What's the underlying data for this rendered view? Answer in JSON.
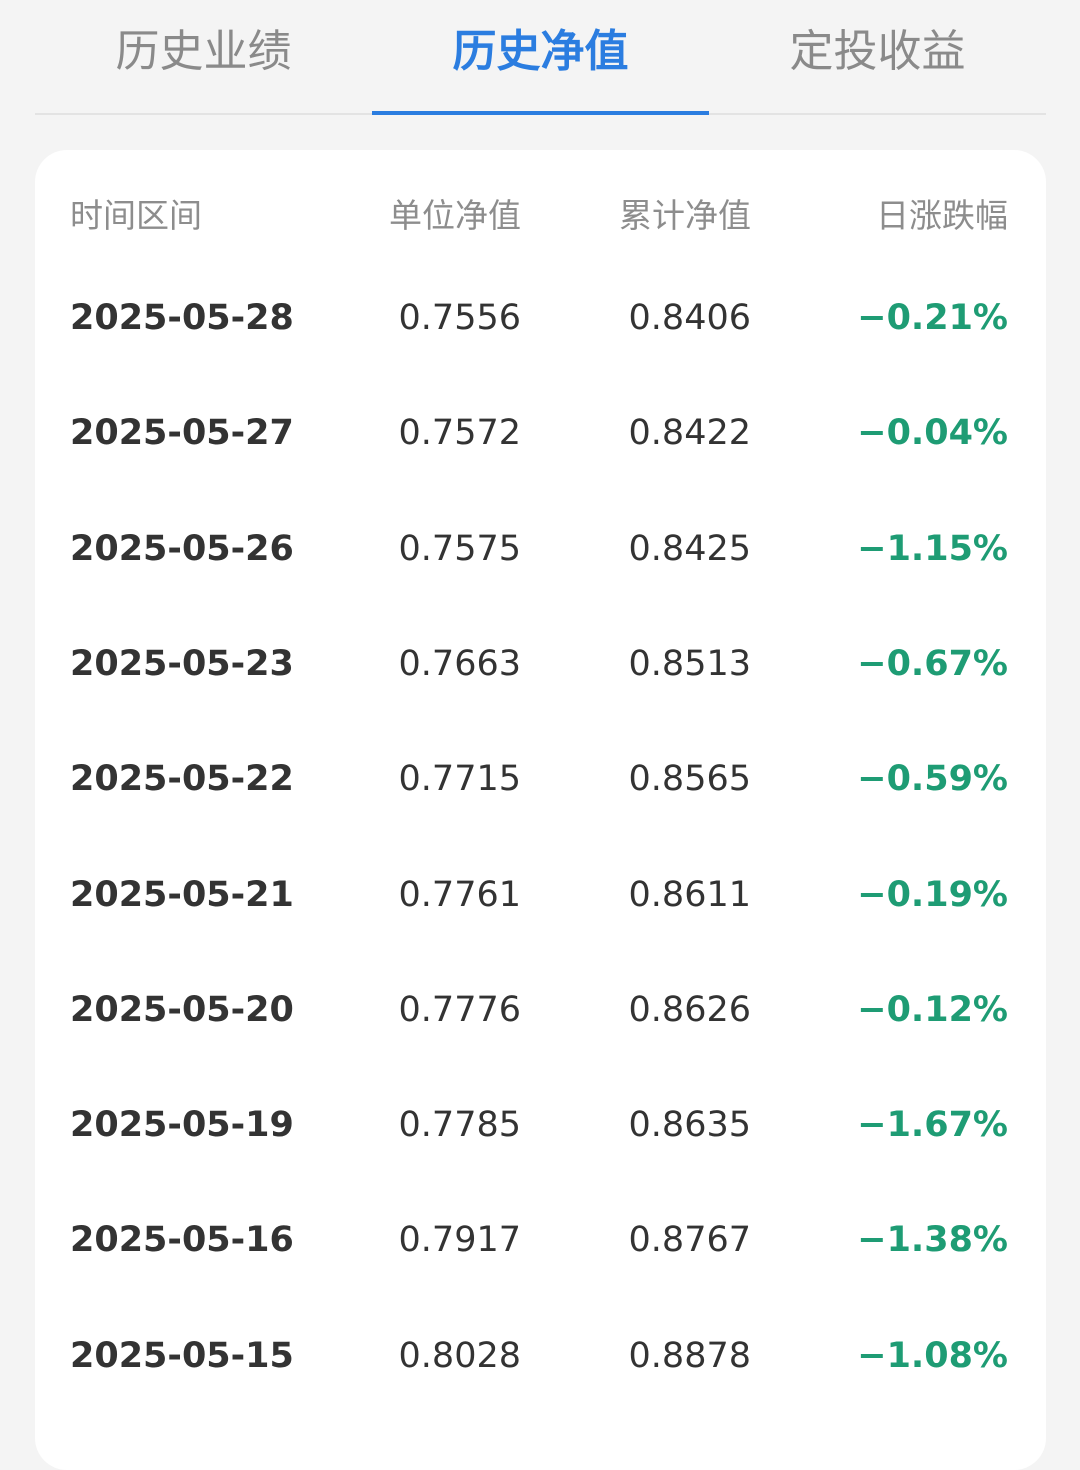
{
  "tabs": [
    {
      "label": "历史业绩",
      "active": false
    },
    {
      "label": "历史净值",
      "active": true
    },
    {
      "label": "定投收益",
      "active": false
    }
  ],
  "table": {
    "headers": {
      "date": "时间区间",
      "nav": "单位净值",
      "acc_nav": "累计净值",
      "change": "日涨跌幅"
    },
    "rows": [
      {
        "date": "2025-05-28",
        "nav": "0.7556",
        "acc_nav": "0.8406",
        "change": "−0.21%"
      },
      {
        "date": "2025-05-27",
        "nav": "0.7572",
        "acc_nav": "0.8422",
        "change": "−0.04%"
      },
      {
        "date": "2025-05-26",
        "nav": "0.7575",
        "acc_nav": "0.8425",
        "change": "−1.15%"
      },
      {
        "date": "2025-05-23",
        "nav": "0.7663",
        "acc_nav": "0.8513",
        "change": "−0.67%"
      },
      {
        "date": "2025-05-22",
        "nav": "0.7715",
        "acc_nav": "0.8565",
        "change": "−0.59%"
      },
      {
        "date": "2025-05-21",
        "nav": "0.7761",
        "acc_nav": "0.8611",
        "change": "−0.19%"
      },
      {
        "date": "2025-05-20",
        "nav": "0.7776",
        "acc_nav": "0.8626",
        "change": "−0.12%"
      },
      {
        "date": "2025-05-19",
        "nav": "0.7785",
        "acc_nav": "0.8635",
        "change": "−1.67%"
      },
      {
        "date": "2025-05-16",
        "nav": "0.7917",
        "acc_nav": "0.8767",
        "change": "−1.38%"
      },
      {
        "date": "2025-05-15",
        "nav": "0.8028",
        "acc_nav": "0.8878",
        "change": "−1.08%"
      }
    ]
  },
  "colors": {
    "accent": "#2b7de0",
    "negative": "#1e9c74",
    "positive": "#e04a3f"
  }
}
